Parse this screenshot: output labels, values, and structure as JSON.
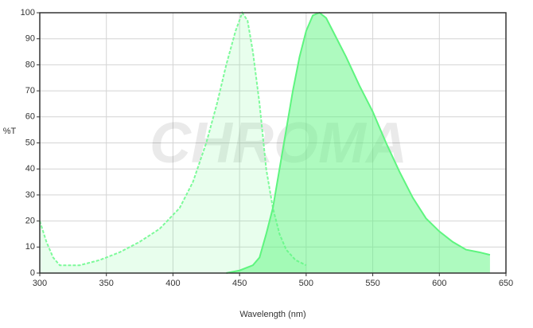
{
  "chart_data": {
    "type": "area",
    "watermark": "CHROMA",
    "xlabel": "Wavelength (nm)",
    "ylabel": "%T",
    "xlim": [
      300,
      650
    ],
    "ylim": [
      0,
      100
    ],
    "xticks": [
      300,
      350,
      400,
      450,
      500,
      550,
      600,
      650
    ],
    "yticks": [
      0,
      10,
      20,
      30,
      40,
      50,
      60,
      70,
      80,
      90,
      100
    ],
    "grid": true,
    "series": [
      {
        "color": "#7dfa9a",
        "fill_opacity": 0.18,
        "dashed": true,
        "x": [
          300,
          305,
          310,
          315,
          330,
          345,
          360,
          375,
          390,
          405,
          415,
          425,
          433,
          440,
          447,
          452,
          456,
          460,
          465,
          470,
          475,
          480,
          485,
          492,
          500
        ],
        "values": [
          20,
          12,
          6,
          3,
          3,
          5,
          8,
          12,
          17,
          25,
          35,
          50,
          65,
          80,
          93,
          100,
          97,
          85,
          65,
          40,
          25,
          15,
          9,
          5,
          3
        ]
      },
      {
        "color": "#5ef57f",
        "fill_opacity": 0.5,
        "dashed": false,
        "x": [
          440,
          450,
          460,
          465,
          470,
          475,
          480,
          485,
          490,
          495,
          500,
          505,
          510,
          515,
          520,
          530,
          540,
          550,
          560,
          570,
          580,
          590,
          600,
          610,
          620,
          630,
          638
        ],
        "values": [
          0,
          1,
          3,
          6,
          15,
          25,
          40,
          55,
          70,
          83,
          93,
          99,
          100,
          98,
          93,
          83,
          72,
          62,
          50,
          39,
          29,
          21,
          16,
          12,
          9,
          8,
          7
        ]
      }
    ]
  }
}
